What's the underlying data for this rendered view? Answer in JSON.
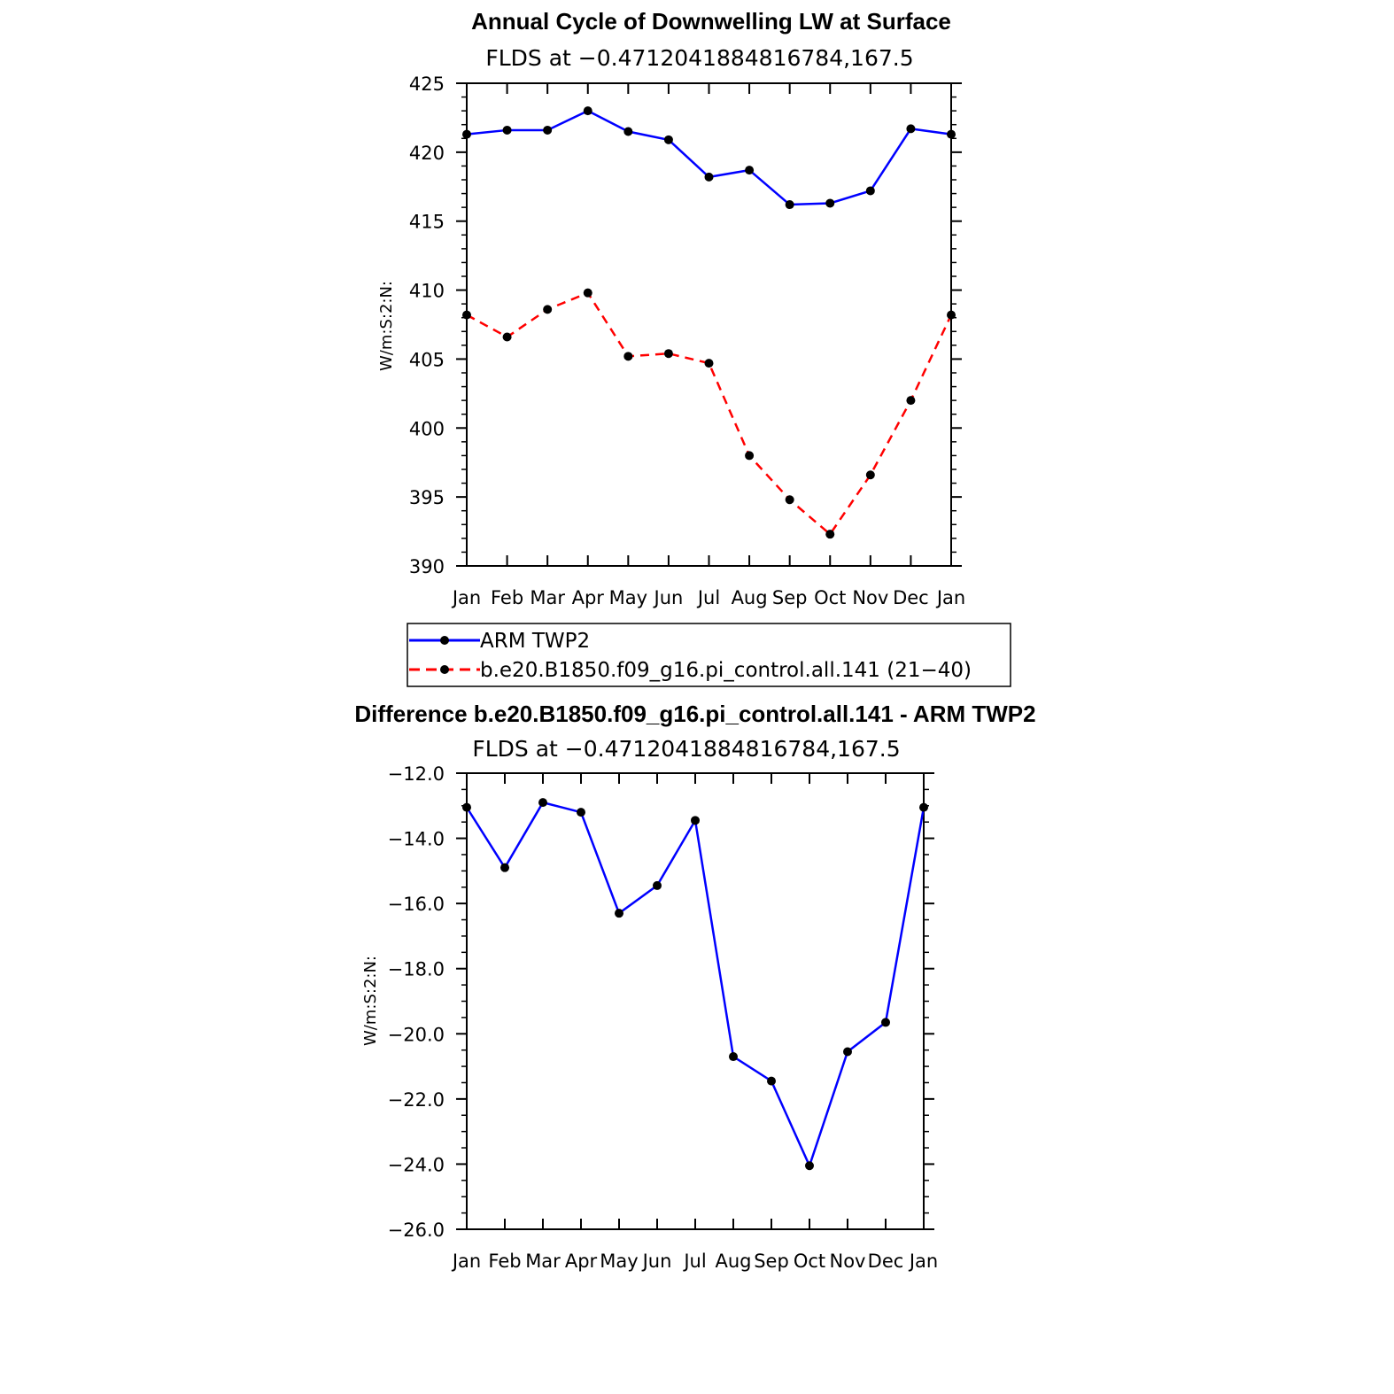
{
  "chart_data": [
    {
      "type": "line",
      "title": "Annual Cycle of Downwelling LW at Surface",
      "subtitle": "FLDS at −0.4712041884816784,167.5",
      "ylabel": "W/m:S:2:N:",
      "xlabel": "",
      "categories": [
        "Jan",
        "Feb",
        "Mar",
        "Apr",
        "May",
        "Jun",
        "Jul",
        "Aug",
        "Sep",
        "Oct",
        "Nov",
        "Dec",
        "Jan"
      ],
      "ylim": [
        390,
        425
      ],
      "yticks": [
        "390",
        "395",
        "400",
        "405",
        "410",
        "415",
        "420",
        "425"
      ],
      "series": [
        {
          "name": "ARM TWP2",
          "color": "#0000ff",
          "dash": "solid",
          "values": [
            421.3,
            421.6,
            421.6,
            423.0,
            421.5,
            420.9,
            418.2,
            418.7,
            416.2,
            416.3,
            417.2,
            421.7,
            421.3
          ]
        },
        {
          "name": "b.e20.B1850.f09_g16.pi_control.all.141 (21−40)",
          "color": "#ff0000",
          "dash": "dashed",
          "values": [
            408.2,
            406.6,
            408.6,
            409.8,
            405.2,
            405.4,
            404.7,
            398.0,
            394.8,
            392.3,
            396.6,
            402.0,
            408.2
          ]
        }
      ],
      "legend": "below",
      "grid": false
    },
    {
      "type": "line",
      "title": "Difference b.e20.B1850.f09_g16.pi_control.all.141 - ARM TWP2",
      "subtitle": "FLDS at −0.4712041884816784,167.5",
      "ylabel": "W/m:S:2:N:",
      "xlabel": "",
      "categories": [
        "Jan",
        "Feb",
        "Mar",
        "Apr",
        "May",
        "Jun",
        "Jul",
        "Aug",
        "Sep",
        "Oct",
        "Nov",
        "Dec",
        "Jan"
      ],
      "ylim": [
        -26.0,
        -12.0
      ],
      "yticks": [
        "−26.0",
        "−24.0",
        "−22.0",
        "−20.0",
        "−18.0",
        "−16.0",
        "−14.0",
        "−12.0"
      ],
      "series": [
        {
          "color": "#0000ff",
          "dash": "solid",
          "values": [
            -13.05,
            -14.9,
            -12.9,
            -13.2,
            -16.3,
            -15.45,
            -13.45,
            -20.7,
            -21.45,
            -24.05,
            -20.55,
            -19.65,
            -13.05
          ]
        }
      ],
      "grid": false
    }
  ]
}
